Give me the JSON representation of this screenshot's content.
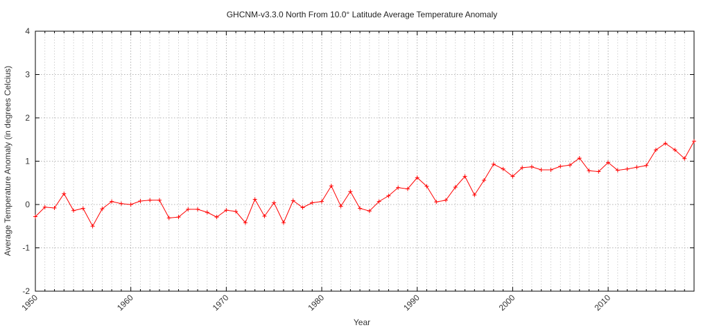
{
  "chart_data": {
    "type": "line",
    "title": "GHCNM-v3.3.0 North From 10.0° Latitude Average Temperature Anomaly",
    "xlabel": "Year",
    "ylabel": "Average Temperature Anomaly (in degrees Celcius)",
    "xlim": [
      1950,
      2019
    ],
    "ylim": [
      -2,
      4
    ],
    "x_ticks": [
      "1950",
      "1960",
      "1970",
      "1980",
      "1990",
      "2000",
      "2010"
    ],
    "y_ticks": [
      "-2",
      "-1",
      "0",
      "1",
      "2",
      "3",
      "4"
    ],
    "grid": true,
    "x": [
      1950,
      1951,
      1952,
      1953,
      1954,
      1955,
      1956,
      1957,
      1958,
      1959,
      1960,
      1961,
      1962,
      1963,
      1964,
      1965,
      1966,
      1967,
      1968,
      1969,
      1970,
      1971,
      1972,
      1973,
      1974,
      1975,
      1976,
      1977,
      1978,
      1979,
      1980,
      1981,
      1982,
      1983,
      1984,
      1985,
      1986,
      1987,
      1988,
      1989,
      1990,
      1991,
      1992,
      1993,
      1994,
      1995,
      1996,
      1997,
      1998,
      1999,
      2000,
      2001,
      2002,
      2003,
      2004,
      2005,
      2006,
      2007,
      2008,
      2009,
      2010,
      2011,
      2012,
      2013,
      2014,
      2015,
      2016,
      2017,
      2018,
      2019
    ],
    "series": [
      {
        "color": "#ff0000",
        "values": [
          -0.28,
          -0.06,
          -0.08,
          0.25,
          -0.14,
          -0.09,
          -0.5,
          -0.1,
          0.07,
          0.02,
          0.0,
          0.08,
          0.1,
          0.1,
          -0.31,
          -0.29,
          -0.11,
          -0.11,
          -0.18,
          -0.29,
          -0.13,
          -0.16,
          -0.42,
          0.12,
          -0.27,
          0.04,
          -0.42,
          0.09,
          -0.07,
          0.04,
          0.07,
          0.43,
          -0.04,
          0.3,
          -0.09,
          -0.15,
          0.07,
          0.2,
          0.39,
          0.36,
          0.62,
          0.42,
          0.06,
          0.1,
          0.4,
          0.65,
          0.22,
          0.56,
          0.93,
          0.82,
          0.65,
          0.85,
          0.87,
          0.8,
          0.8,
          0.88,
          0.91,
          1.07,
          0.78,
          0.76,
          0.97,
          0.79,
          0.82,
          0.86,
          0.9,
          1.26,
          1.41,
          1.26,
          1.06,
          1.46
        ]
      }
    ]
  }
}
